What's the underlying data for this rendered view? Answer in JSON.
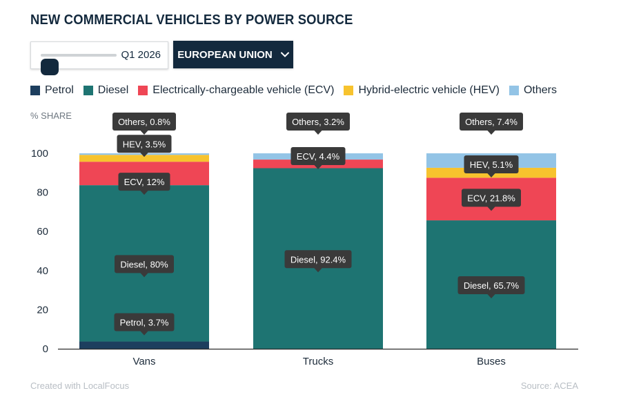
{
  "title": "NEW COMMERCIAL VEHICLES BY POWER SOURCE",
  "controls": {
    "slider_value": "Q1 2026",
    "slider_position": 0,
    "region_label": "EUROPEAN UNION",
    "region_icon": "chevron-down-icon"
  },
  "footer": {
    "credit": "Created with LocalFocus",
    "source": "Source:  ACEA"
  },
  "chart_data": {
    "type": "bar",
    "stacked": true,
    "ylabel": "% SHARE",
    "ylim": [
      0,
      100
    ],
    "yticks": [
      0,
      20,
      40,
      60,
      80,
      100
    ],
    "categories": [
      "Vans",
      "Trucks",
      "Buses"
    ],
    "series": [
      {
        "name": "Petrol",
        "color": "#1d3e5e",
        "values": [
          3.7,
          0,
          0
        ]
      },
      {
        "name": "Diesel",
        "color": "#1e7472",
        "values": [
          80,
          92.4,
          65.7
        ]
      },
      {
        "name": "Electrically-chargeable vehicle (ECV)",
        "color": "#ef4655",
        "values": [
          12,
          4.4,
          21.8
        ]
      },
      {
        "name": "Hybrid-electric vehicle (HEV)",
        "color": "#f7c32e",
        "values": [
          3.5,
          0,
          5.1
        ]
      },
      {
        "name": "Others",
        "color": "#93c4e6",
        "values": [
          0.8,
          3.2,
          7.4
        ]
      }
    ],
    "labels": [
      {
        "category": "Vans",
        "text": "Others, 0.8%"
      },
      {
        "category": "Vans",
        "text": "HEV, 3.5%"
      },
      {
        "category": "Vans",
        "text": "ECV, 12%"
      },
      {
        "category": "Vans",
        "text": "Diesel, 80%"
      },
      {
        "category": "Vans",
        "text": "Petrol, 3.7%"
      },
      {
        "category": "Trucks",
        "text": "Others, 3.2%"
      },
      {
        "category": "Trucks",
        "text": "ECV, 4.4%"
      },
      {
        "category": "Trucks",
        "text": "Diesel, 92.4%"
      },
      {
        "category": "Buses",
        "text": "Others, 7.4%"
      },
      {
        "category": "Buses",
        "text": "HEV, 5.1%"
      },
      {
        "category": "Buses",
        "text": "ECV, 21.8%"
      },
      {
        "category": "Buses",
        "text": "Diesel, 65.7%"
      }
    ],
    "grid": false,
    "legend_position": "top-left"
  }
}
